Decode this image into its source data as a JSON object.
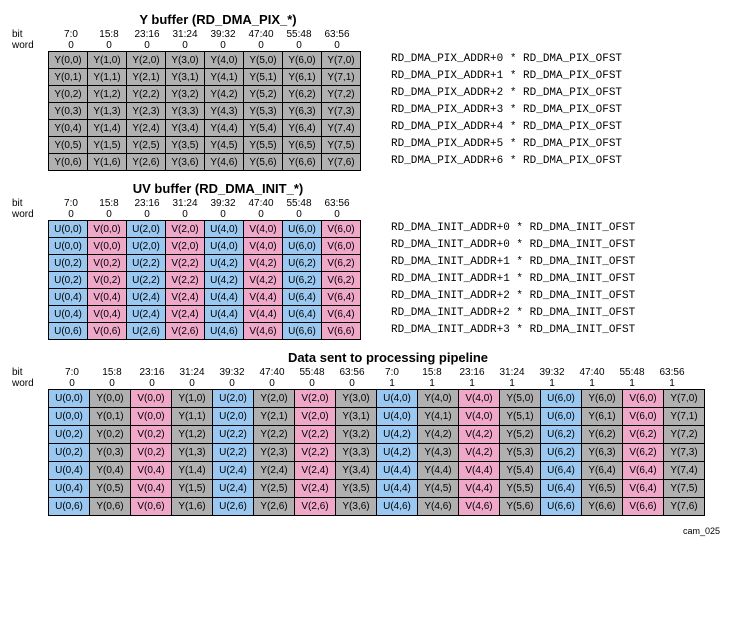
{
  "footer": "cam_025",
  "labels": {
    "bit": "bit",
    "word": "word"
  },
  "bitHeaders": [
    "7:0",
    "15:8",
    "23:16",
    "31:24",
    "39:32",
    "47:40",
    "55:48",
    "63:56"
  ],
  "bitHeaders16": [
    "7:0",
    "15:8",
    "23:16",
    "31:24",
    "39:32",
    "47:40",
    "55:48",
    "63:56",
    "7:0",
    "15:8",
    "23:16",
    "31:24",
    "39:32",
    "47:40",
    "55:48",
    "63:56"
  ],
  "word0": [
    "0",
    "0",
    "0",
    "0",
    "0",
    "0",
    "0",
    "0"
  ],
  "word01": [
    "0",
    "0",
    "0",
    "0",
    "0",
    "0",
    "0",
    "0",
    "1",
    "1",
    "1",
    "1",
    "1",
    "1",
    "1",
    "1"
  ],
  "colors": {
    "gray": "#b0b0b0",
    "blue": "#9ac8f0",
    "pink": "#f0a8c8",
    "border": "#000000",
    "bg": "#ffffff"
  },
  "fonts": {
    "mono": "Courier New",
    "body": "Arial",
    "titleSize": 13,
    "cellSize": 10,
    "addrSize": 11
  },
  "sec1": {
    "title": "Y buffer (RD_DMA_PIX_*)",
    "rows": [
      [
        "Y(0,0)",
        "Y(1,0)",
        "Y(2,0)",
        "Y(3,0)",
        "Y(4,0)",
        "Y(5,0)",
        "Y(6,0)",
        "Y(7,0)"
      ],
      [
        "Y(0,1)",
        "Y(1,1)",
        "Y(2,1)",
        "Y(3,1)",
        "Y(4,1)",
        "Y(5,1)",
        "Y(6,1)",
        "Y(7,1)"
      ],
      [
        "Y(0,2)",
        "Y(1,2)",
        "Y(2,2)",
        "Y(3,2)",
        "Y(4,2)",
        "Y(5,2)",
        "Y(6,2)",
        "Y(7,2)"
      ],
      [
        "Y(0,3)",
        "Y(1,3)",
        "Y(2,3)",
        "Y(3,3)",
        "Y(4,3)",
        "Y(5,3)",
        "Y(6,3)",
        "Y(7,3)"
      ],
      [
        "Y(0,4)",
        "Y(1,4)",
        "Y(2,4)",
        "Y(3,4)",
        "Y(4,4)",
        "Y(5,4)",
        "Y(6,4)",
        "Y(7,4)"
      ],
      [
        "Y(0,5)",
        "Y(1,5)",
        "Y(2,5)",
        "Y(3,5)",
        "Y(4,5)",
        "Y(5,5)",
        "Y(6,5)",
        "Y(7,5)"
      ],
      [
        "Y(0,6)",
        "Y(1,6)",
        "Y(2,6)",
        "Y(3,6)",
        "Y(4,6)",
        "Y(5,6)",
        "Y(6,6)",
        "Y(7,6)"
      ]
    ],
    "addr": [
      "RD_DMA_PIX_ADDR+0 * RD_DMA_PIX_OFST",
      "RD_DMA_PIX_ADDR+1 * RD_DMA_PIX_OFST",
      "RD_DMA_PIX_ADDR+2 * RD_DMA_PIX_OFST",
      "RD_DMA_PIX_ADDR+3 * RD_DMA_PIX_OFST",
      "RD_DMA_PIX_ADDR+4 * RD_DMA_PIX_OFST",
      "RD_DMA_PIX_ADDR+5 * RD_DMA_PIX_OFST",
      "RD_DMA_PIX_ADDR+6 * RD_DMA_PIX_OFST"
    ]
  },
  "sec2": {
    "title": "UV buffer (RD_DMA_INIT_*)",
    "rows": [
      [
        [
          "U(0,0)",
          "blue"
        ],
        [
          "V(0,0)",
          "pink"
        ],
        [
          "U(2,0)",
          "blue"
        ],
        [
          "V(2,0)",
          "pink"
        ],
        [
          "U(4,0)",
          "blue"
        ],
        [
          "V(4,0)",
          "pink"
        ],
        [
          "U(6,0)",
          "blue"
        ],
        [
          "V(6,0)",
          "pink"
        ]
      ],
      [
        [
          "U(0,0)",
          "blue"
        ],
        [
          "V(0,0)",
          "pink"
        ],
        [
          "U(2,0)",
          "blue"
        ],
        [
          "V(2,0)",
          "pink"
        ],
        [
          "U(4,0)",
          "blue"
        ],
        [
          "V(4,0)",
          "pink"
        ],
        [
          "U(6,0)",
          "blue"
        ],
        [
          "V(6,0)",
          "pink"
        ]
      ],
      [
        [
          "U(0,2)",
          "blue"
        ],
        [
          "V(0,2)",
          "pink"
        ],
        [
          "U(2,2)",
          "blue"
        ],
        [
          "V(2,2)",
          "pink"
        ],
        [
          "U(4,2)",
          "blue"
        ],
        [
          "V(4,2)",
          "pink"
        ],
        [
          "U(6,2)",
          "blue"
        ],
        [
          "V(6,2)",
          "pink"
        ]
      ],
      [
        [
          "U(0,2)",
          "blue"
        ],
        [
          "V(0,2)",
          "pink"
        ],
        [
          "U(2,2)",
          "blue"
        ],
        [
          "V(2,2)",
          "pink"
        ],
        [
          "U(4,2)",
          "blue"
        ],
        [
          "V(4,2)",
          "pink"
        ],
        [
          "U(6,2)",
          "blue"
        ],
        [
          "V(6,2)",
          "pink"
        ]
      ],
      [
        [
          "U(0,4)",
          "blue"
        ],
        [
          "V(0,4)",
          "pink"
        ],
        [
          "U(2,4)",
          "blue"
        ],
        [
          "V(2,4)",
          "pink"
        ],
        [
          "U(4,4)",
          "blue"
        ],
        [
          "V(4,4)",
          "pink"
        ],
        [
          "U(6,4)",
          "blue"
        ],
        [
          "V(6,4)",
          "pink"
        ]
      ],
      [
        [
          "U(0,4)",
          "blue"
        ],
        [
          "V(0,4)",
          "pink"
        ],
        [
          "U(2,4)",
          "blue"
        ],
        [
          "V(2,4)",
          "pink"
        ],
        [
          "U(4,4)",
          "blue"
        ],
        [
          "V(4,4)",
          "pink"
        ],
        [
          "U(6,4)",
          "blue"
        ],
        [
          "V(6,4)",
          "pink"
        ]
      ],
      [
        [
          "U(0,6)",
          "blue"
        ],
        [
          "V(0,6)",
          "pink"
        ],
        [
          "U(2,6)",
          "blue"
        ],
        [
          "V(2,6)",
          "pink"
        ],
        [
          "U(4,6)",
          "blue"
        ],
        [
          "V(4,6)",
          "pink"
        ],
        [
          "U(6,6)",
          "blue"
        ],
        [
          "V(6,6)",
          "pink"
        ]
      ]
    ],
    "addr": [
      "RD_DMA_INIT_ADDR+0 * RD_DMA_INIT_OFST",
      "RD_DMA_INIT_ADDR+0 * RD_DMA_INIT_OFST",
      "RD_DMA_INIT_ADDR+1 * RD_DMA_INIT_OFST",
      "RD_DMA_INIT_ADDR+1 * RD_DMA_INIT_OFST",
      "RD_DMA_INIT_ADDR+2 * RD_DMA_INIT_OFST",
      "RD_DMA_INIT_ADDR+2 * RD_DMA_INIT_OFST",
      "RD_DMA_INIT_ADDR+3 * RD_DMA_INIT_OFST"
    ]
  },
  "sec3": {
    "title": "Data sent to processing pipeline",
    "rows": [
      [
        [
          "U(0,0)",
          "blue"
        ],
        [
          "Y(0,0)",
          "gray"
        ],
        [
          "V(0,0)",
          "pink"
        ],
        [
          "Y(1,0)",
          "gray"
        ],
        [
          "U(2,0)",
          "blue"
        ],
        [
          "Y(2,0)",
          "gray"
        ],
        [
          "V(2,0)",
          "pink"
        ],
        [
          "Y(3,0)",
          "gray"
        ],
        [
          "U(4,0)",
          "blue"
        ],
        [
          "Y(4,0)",
          "gray"
        ],
        [
          "V(4,0)",
          "pink"
        ],
        [
          "Y(5,0)",
          "gray"
        ],
        [
          "U(6,0)",
          "blue"
        ],
        [
          "Y(6,0)",
          "gray"
        ],
        [
          "V(6,0)",
          "pink"
        ],
        [
          "Y(7,0)",
          "gray"
        ]
      ],
      [
        [
          "U(0,0)",
          "blue"
        ],
        [
          "Y(0,1)",
          "gray"
        ],
        [
          "V(0,0)",
          "pink"
        ],
        [
          "Y(1,1)",
          "gray"
        ],
        [
          "U(2,0)",
          "blue"
        ],
        [
          "Y(2,1)",
          "gray"
        ],
        [
          "V(2,0)",
          "pink"
        ],
        [
          "Y(3,1)",
          "gray"
        ],
        [
          "U(4,0)",
          "blue"
        ],
        [
          "Y(4,1)",
          "gray"
        ],
        [
          "V(4,0)",
          "pink"
        ],
        [
          "Y(5,1)",
          "gray"
        ],
        [
          "U(6,0)",
          "blue"
        ],
        [
          "Y(6,1)",
          "gray"
        ],
        [
          "V(6,0)",
          "pink"
        ],
        [
          "Y(7,1)",
          "gray"
        ]
      ],
      [
        [
          "U(0,2)",
          "blue"
        ],
        [
          "Y(0,2)",
          "gray"
        ],
        [
          "V(0,2)",
          "pink"
        ],
        [
          "Y(1,2)",
          "gray"
        ],
        [
          "U(2,2)",
          "blue"
        ],
        [
          "Y(2,2)",
          "gray"
        ],
        [
          "V(2,2)",
          "pink"
        ],
        [
          "Y(3,2)",
          "gray"
        ],
        [
          "U(4,2)",
          "blue"
        ],
        [
          "Y(4,2)",
          "gray"
        ],
        [
          "V(4,2)",
          "pink"
        ],
        [
          "Y(5,2)",
          "gray"
        ],
        [
          "U(6,2)",
          "blue"
        ],
        [
          "Y(6,2)",
          "gray"
        ],
        [
          "V(6,2)",
          "pink"
        ],
        [
          "Y(7,2)",
          "gray"
        ]
      ],
      [
        [
          "U(0,2)",
          "blue"
        ],
        [
          "Y(0,3)",
          "gray"
        ],
        [
          "V(0,2)",
          "pink"
        ],
        [
          "Y(1,3)",
          "gray"
        ],
        [
          "U(2,2)",
          "blue"
        ],
        [
          "Y(2,3)",
          "gray"
        ],
        [
          "V(2,2)",
          "pink"
        ],
        [
          "Y(3,3)",
          "gray"
        ],
        [
          "U(4,2)",
          "blue"
        ],
        [
          "Y(4,3)",
          "gray"
        ],
        [
          "V(4,2)",
          "pink"
        ],
        [
          "Y(5,3)",
          "gray"
        ],
        [
          "U(6,2)",
          "blue"
        ],
        [
          "Y(6,3)",
          "gray"
        ],
        [
          "V(6,2)",
          "pink"
        ],
        [
          "Y(7,3)",
          "gray"
        ]
      ],
      [
        [
          "U(0,4)",
          "blue"
        ],
        [
          "Y(0,4)",
          "gray"
        ],
        [
          "V(0,4)",
          "pink"
        ],
        [
          "Y(1,4)",
          "gray"
        ],
        [
          "U(2,4)",
          "blue"
        ],
        [
          "Y(2,4)",
          "gray"
        ],
        [
          "V(2,4)",
          "pink"
        ],
        [
          "Y(3,4)",
          "gray"
        ],
        [
          "U(4,4)",
          "blue"
        ],
        [
          "Y(4,4)",
          "gray"
        ],
        [
          "V(4,4)",
          "pink"
        ],
        [
          "Y(5,4)",
          "gray"
        ],
        [
          "U(6,4)",
          "blue"
        ],
        [
          "Y(6,4)",
          "gray"
        ],
        [
          "V(6,4)",
          "pink"
        ],
        [
          "Y(7,4)",
          "gray"
        ]
      ],
      [
        [
          "U(0,4)",
          "blue"
        ],
        [
          "Y(0,5)",
          "gray"
        ],
        [
          "V(0,4)",
          "pink"
        ],
        [
          "Y(1,5)",
          "gray"
        ],
        [
          "U(2,4)",
          "blue"
        ],
        [
          "Y(2,5)",
          "gray"
        ],
        [
          "V(2,4)",
          "pink"
        ],
        [
          "Y(3,5)",
          "gray"
        ],
        [
          "U(4,4)",
          "blue"
        ],
        [
          "Y(4,5)",
          "gray"
        ],
        [
          "V(4,4)",
          "pink"
        ],
        [
          "Y(5,5)",
          "gray"
        ],
        [
          "U(6,4)",
          "blue"
        ],
        [
          "Y(6,5)",
          "gray"
        ],
        [
          "V(6,4)",
          "pink"
        ],
        [
          "Y(7,5)",
          "gray"
        ]
      ],
      [
        [
          "U(0,6)",
          "blue"
        ],
        [
          "Y(0,6)",
          "gray"
        ],
        [
          "V(0,6)",
          "pink"
        ],
        [
          "Y(1,6)",
          "gray"
        ],
        [
          "U(2,6)",
          "blue"
        ],
        [
          "Y(2,6)",
          "gray"
        ],
        [
          "V(2,6)",
          "pink"
        ],
        [
          "Y(3,6)",
          "gray"
        ],
        [
          "U(4,6)",
          "blue"
        ],
        [
          "Y(4,6)",
          "gray"
        ],
        [
          "V(4,6)",
          "pink"
        ],
        [
          "Y(5,6)",
          "gray"
        ],
        [
          "U(6,6)",
          "blue"
        ],
        [
          "Y(6,6)",
          "gray"
        ],
        [
          "V(6,6)",
          "pink"
        ],
        [
          "Y(7,6)",
          "gray"
        ]
      ]
    ]
  }
}
